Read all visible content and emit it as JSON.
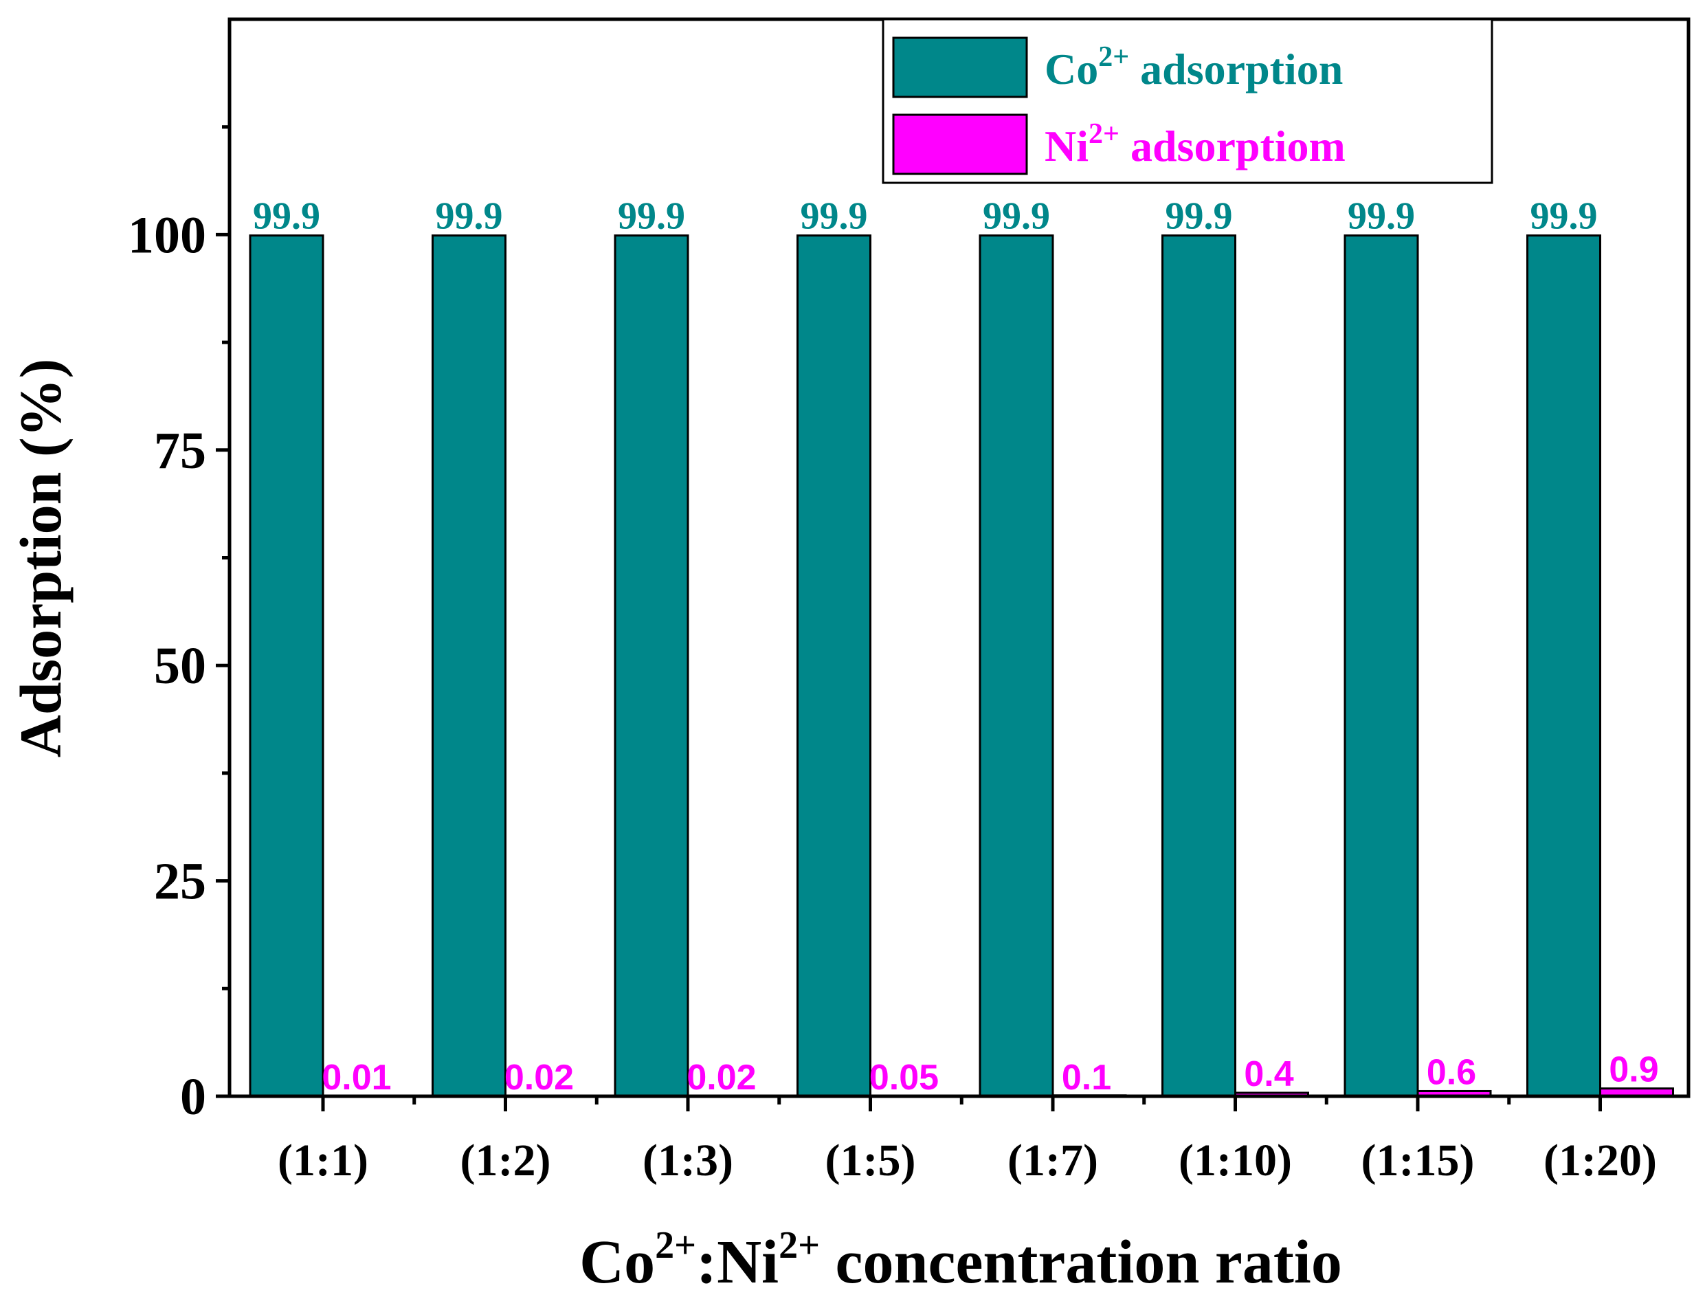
{
  "chart_data": {
    "type": "bar",
    "title": "",
    "xlabel": {
      "base1": "Co",
      "sup1": "2+",
      "sep": ":Ni",
      "sup2": "2+",
      "rest": " concentration ratio"
    },
    "ylabel": "Adsorption (%)",
    "ylim": [
      0,
      125
    ],
    "yticks": [
      0,
      25,
      50,
      75,
      100
    ],
    "yminor_ticks": [
      12.5,
      37.5,
      62.5,
      87.5,
      112.5
    ],
    "categories": [
      "(1:1)",
      "(1:2)",
      "(1:3)",
      "(1:5)",
      "(1:7)",
      "(1:10)",
      "(1:15)",
      "(1:20)"
    ],
    "legend_position": "top-right",
    "grid": false,
    "series": [
      {
        "name": "Co2+ adsorption",
        "legend_base": "Co",
        "legend_sup": "2+",
        "legend_rest": " adsorption",
        "color": "#00878A",
        "values": [
          99.9,
          99.9,
          99.9,
          99.9,
          99.9,
          99.9,
          99.9,
          99.9
        ],
        "labels": [
          "99.9",
          "99.9",
          "99.9",
          "99.9",
          "99.9",
          "99.9",
          "99.9",
          "99.9"
        ]
      },
      {
        "name": "Ni2+ adsorptiom",
        "legend_base": "Ni",
        "legend_sup": "2+",
        "legend_rest": " adsorptiom",
        "color": "#FF00FF",
        "values": [
          0.01,
          0.02,
          0.02,
          0.05,
          0.1,
          0.4,
          0.6,
          0.9
        ],
        "labels": [
          "0.01",
          "0.02",
          "0.02",
          "0.05",
          "0.1",
          "0.4",
          "0.6",
          "0.9"
        ]
      }
    ]
  }
}
